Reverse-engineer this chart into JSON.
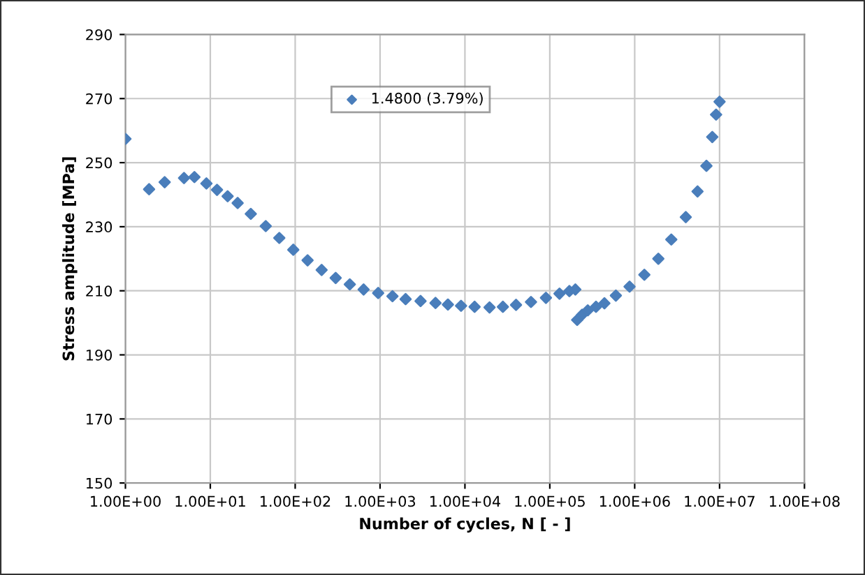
{
  "chart_data": {
    "type": "scatter",
    "xlabel": "Number of cycles, N [ - ]",
    "ylabel": "Stress amplitude [MPa]",
    "log": "x",
    "xlim": [
      1,
      100000000
    ],
    "ylim": [
      150,
      290
    ],
    "xticks": [
      {
        "value": 1,
        "label": "1.00E+00"
      },
      {
        "value": 10,
        "label": "1.00E+01"
      },
      {
        "value": 100,
        "label": "1.00E+02"
      },
      {
        "value": 1000,
        "label": "1.00E+03"
      },
      {
        "value": 10000,
        "label": "1.00E+04"
      },
      {
        "value": 100000,
        "label": "1.00E+05"
      },
      {
        "value": 1000000,
        "label": "1.00E+06"
      },
      {
        "value": 10000000,
        "label": "1.00E+07"
      },
      {
        "value": 100000000,
        "label": "1.00E+08"
      }
    ],
    "yticks": [
      150,
      170,
      190,
      210,
      230,
      250,
      270,
      290
    ],
    "grid": true,
    "legend": "top",
    "marker": "diamond",
    "series": [
      {
        "name": "1.4800 (3.79%)",
        "color": "#4a7ebb",
        "x": [
          1,
          1.9,
          2.9,
          4.9,
          6.5,
          9,
          12,
          16,
          21,
          30,
          45,
          65,
          95,
          140,
          205,
          300,
          440,
          640,
          950,
          1400,
          2000,
          3000,
          4500,
          6300,
          9000,
          13000,
          19500,
          28000,
          40000,
          60000,
          90000,
          130000,
          170000,
          200000,
          210000,
          240000,
          280000,
          350000,
          440000,
          600000,
          870000,
          1300000,
          1900000,
          2700000,
          4000000,
          5500000,
          7000000,
          8200000,
          9100000,
          10000000
        ],
        "values": [
          257.4,
          241.7,
          243.9,
          245.2,
          245.5,
          243.5,
          241.5,
          239.5,
          237.4,
          234.0,
          230.2,
          226.5,
          222.8,
          219.5,
          216.5,
          214.0,
          212.0,
          210.4,
          209.3,
          208.3,
          207.4,
          206.8,
          206.2,
          205.7,
          205.3,
          205.0,
          204.8,
          205.0,
          205.6,
          206.5,
          207.8,
          209.1,
          209.9,
          210.4,
          200.9,
          202.5,
          203.9,
          205.0,
          206.1,
          208.5,
          211.3,
          215.0,
          220.0,
          226.0,
          233.0,
          241.0,
          249.0,
          258.0,
          265.0,
          269.0
        ]
      }
    ]
  }
}
